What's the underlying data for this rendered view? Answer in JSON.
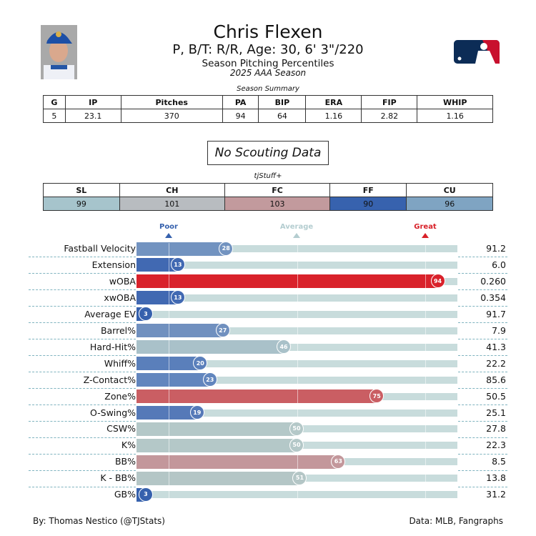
{
  "header": {
    "name": "Chris Flexen",
    "bio": "P, B/T: R/R, Age: 30, 6' 3\"/220",
    "title": "Season Pitching Percentiles",
    "subtitle": "2025 AAA Season"
  },
  "summary": {
    "caption": "Season Summary",
    "headers": [
      "G",
      "IP",
      "Pitches",
      "PA",
      "BIP",
      "ERA",
      "FIP",
      "WHIP"
    ],
    "values": [
      "5",
      "23.1",
      "370",
      "94",
      "64",
      "1.16",
      "2.82",
      "1.16"
    ]
  },
  "scouting": {
    "label": "No Scouting Data"
  },
  "stuff": {
    "caption": "tjStuff+",
    "headers": [
      "SL",
      "CH",
      "FC",
      "FF",
      "CU"
    ],
    "values": [
      "99",
      "101",
      "103",
      "90",
      "96"
    ],
    "colors": [
      "#a6c4cc",
      "#b8bcc0",
      "#c29a9d",
      "#3762ae",
      "#7fa4c2"
    ]
  },
  "scale": {
    "poor": "Poor",
    "average": "Average",
    "great": "Great",
    "poor_color": "#3661ad",
    "average_color": "#b4cdd0",
    "great_color": "#d82129"
  },
  "chart_data": {
    "type": "bar",
    "orientation": "horizontal",
    "xlim": [
      0,
      100
    ],
    "rows": [
      {
        "label": "Fastball Velocity",
        "percentile": 28,
        "value": "91.2",
        "color": "#7293c0"
      },
      {
        "label": "Extension",
        "percentile": 13,
        "value": "6.0",
        "color": "#4169b2"
      },
      {
        "label": "wOBA",
        "percentile": 94,
        "value": "0.260",
        "color": "#d9222b"
      },
      {
        "label": "xwOBA",
        "percentile": 13,
        "value": "0.354",
        "color": "#4169b2"
      },
      {
        "label": "Average EV",
        "percentile": 3,
        "value": "91.7",
        "color": "#3661ad"
      },
      {
        "label": "Barrel%",
        "percentile": 27,
        "value": "7.9",
        "color": "#7090bf"
      },
      {
        "label": "Hard-Hit%",
        "percentile": 46,
        "value": "41.3",
        "color": "#a9c1c9"
      },
      {
        "label": "Whiff%",
        "percentile": 20,
        "value": "22.2",
        "color": "#5a7fbb"
      },
      {
        "label": "Z-Contact%",
        "percentile": 23,
        "value": "85.6",
        "color": "#6286be"
      },
      {
        "label": "Zone%",
        "percentile": 75,
        "value": "50.5",
        "color": "#ca5e63"
      },
      {
        "label": "O-Swing%",
        "percentile": 19,
        "value": "25.1",
        "color": "#5579b8"
      },
      {
        "label": "CSW%",
        "percentile": 50,
        "value": "27.8",
        "color": "#b4c8c8"
      },
      {
        "label": "K%",
        "percentile": 50,
        "value": "22.3",
        "color": "#b4c8c8"
      },
      {
        "label": "BB%",
        "percentile": 63,
        "value": "8.5",
        "color": "#c3979b"
      },
      {
        "label": "K - BB%",
        "percentile": 51,
        "value": "13.8",
        "color": "#b4c6c6"
      },
      {
        "label": "GB%",
        "percentile": 3,
        "value": "31.2",
        "color": "#3661ad"
      }
    ]
  },
  "footer": {
    "left": "By: Thomas Nestico (@TJStats)",
    "right": "Data: MLB, Fangraphs"
  }
}
